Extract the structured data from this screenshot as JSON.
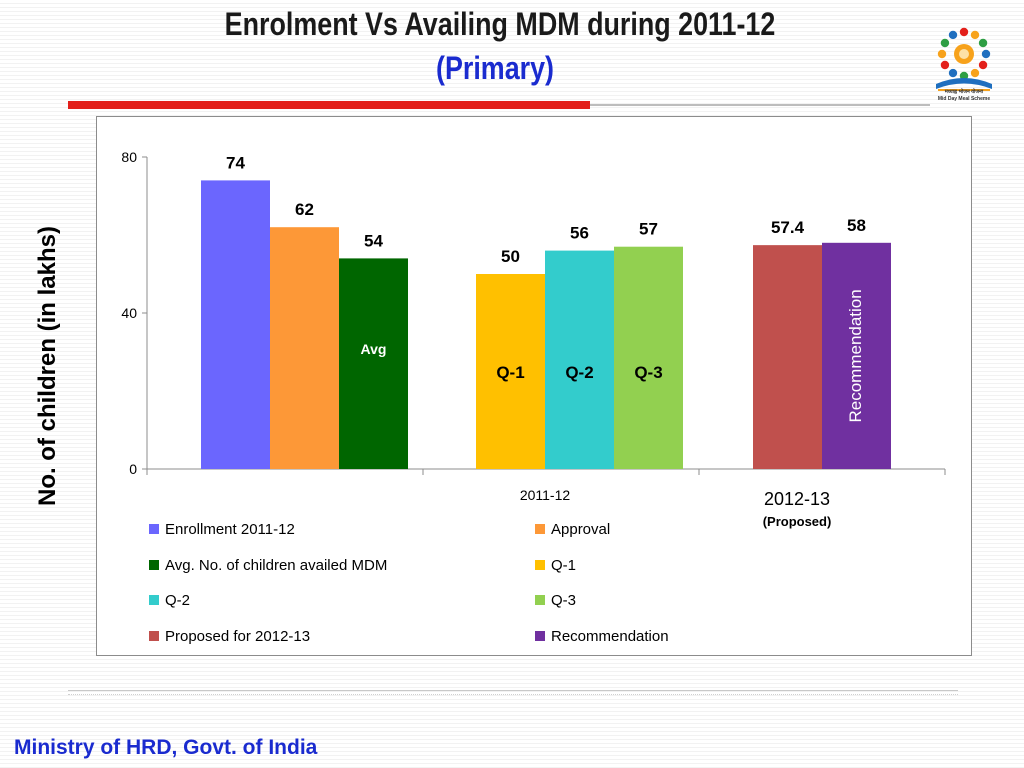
{
  "slide": {
    "title": "Enrolment Vs Availing MDM during  2011-12",
    "subtitle": "(Primary)",
    "footer": "Ministry of HRD, Govt. of India",
    "logo_text_1": "मध्याह्न भोजन योजना",
    "logo_text_2": "Mid Day Meal Scheme"
  },
  "chart_data": {
    "type": "bar",
    "title": "Enrolment Vs Availing MDM during  2011-12",
    "subtitle": "(Primary)",
    "ylabel": "No. of children (in lakhs)",
    "ylim": [
      0,
      80
    ],
    "yticks": [
      0,
      40,
      80
    ],
    "grid": false,
    "legend_position": "bottom",
    "groups": [
      {
        "label": "2011-12",
        "sublabel": "",
        "bars": [
          0,
          1,
          2,
          3,
          4,
          5
        ]
      },
      {
        "label": "2012-13",
        "sublabel": "(Proposed)",
        "bars": [
          6,
          7
        ]
      }
    ],
    "series": [
      {
        "name": "Enrollment 2011-12",
        "value": 74,
        "label": "74",
        "color": "#6b66fe",
        "inner_label": "",
        "inner_color": ""
      },
      {
        "name": "Approval",
        "value": 62,
        "label": "62",
        "color": "#fd9837",
        "inner_label": "",
        "inner_color": ""
      },
      {
        "name": "Avg. No. of children availed MDM",
        "value": 54,
        "label": "54",
        "color": "#006600",
        "inner_label": "Avg",
        "inner_color": "#ffffff"
      },
      {
        "name": "Q-1",
        "value": 50,
        "label": "50",
        "color": "#ffc000",
        "inner_label": "Q-1",
        "inner_color": "#000000"
      },
      {
        "name": "Q-2",
        "value": 56,
        "label": "56",
        "color": "#33cccc",
        "inner_label": "Q-2",
        "inner_color": "#000000"
      },
      {
        "name": "Q-3",
        "value": 57,
        "label": "57",
        "color": "#92d050",
        "inner_label": "Q-3",
        "inner_color": "#000000"
      },
      {
        "name": "Proposed for 2012-13",
        "value": 57.4,
        "label": "57.4",
        "color": "#c0504d",
        "inner_label": "",
        "inner_color": ""
      },
      {
        "name": "Recommendation",
        "value": 58,
        "label": "58",
        "color": "#7030a0",
        "inner_label": "Recommendation",
        "inner_color": "#ffffff"
      }
    ]
  }
}
